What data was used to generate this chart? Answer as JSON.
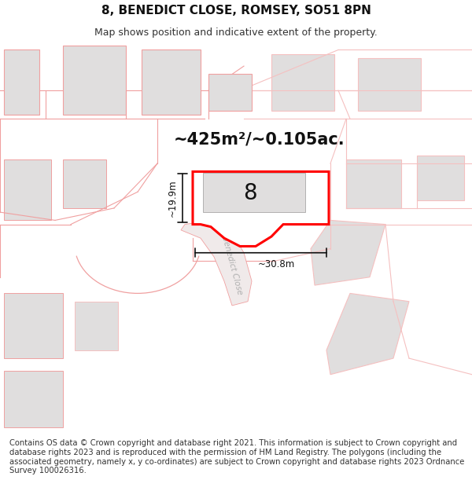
{
  "title": "8, BENEDICT CLOSE, ROMSEY, SO51 8PN",
  "subtitle": "Map shows position and indicative extent of the property.",
  "area_label": "~425m²/~0.105ac.",
  "plot_number": "8",
  "dim_width": "~30.8m",
  "dim_height": "~19.9m",
  "road_label": "Benedict Close",
  "footer": "Contains OS data © Crown copyright and database right 2021. This information is subject to Crown copyright and database rights 2023 and is reproduced with the permission of HM Land Registry. The polygons (including the associated geometry, namely x, y co-ordinates) are subject to Crown copyright and database rights 2023 Ordnance Survey 100026316.",
  "bg_color": "#ffffff",
  "map_bg": "#f9f6f6",
  "property_fill": "#ffffff",
  "property_border": "#ff0000",
  "building_fill": "#e0dede",
  "other_borders": "#f0a0a0",
  "light_border": "#f5c0c0",
  "title_fontsize": 11,
  "subtitle_fontsize": 9,
  "footer_fontsize": 7.2
}
